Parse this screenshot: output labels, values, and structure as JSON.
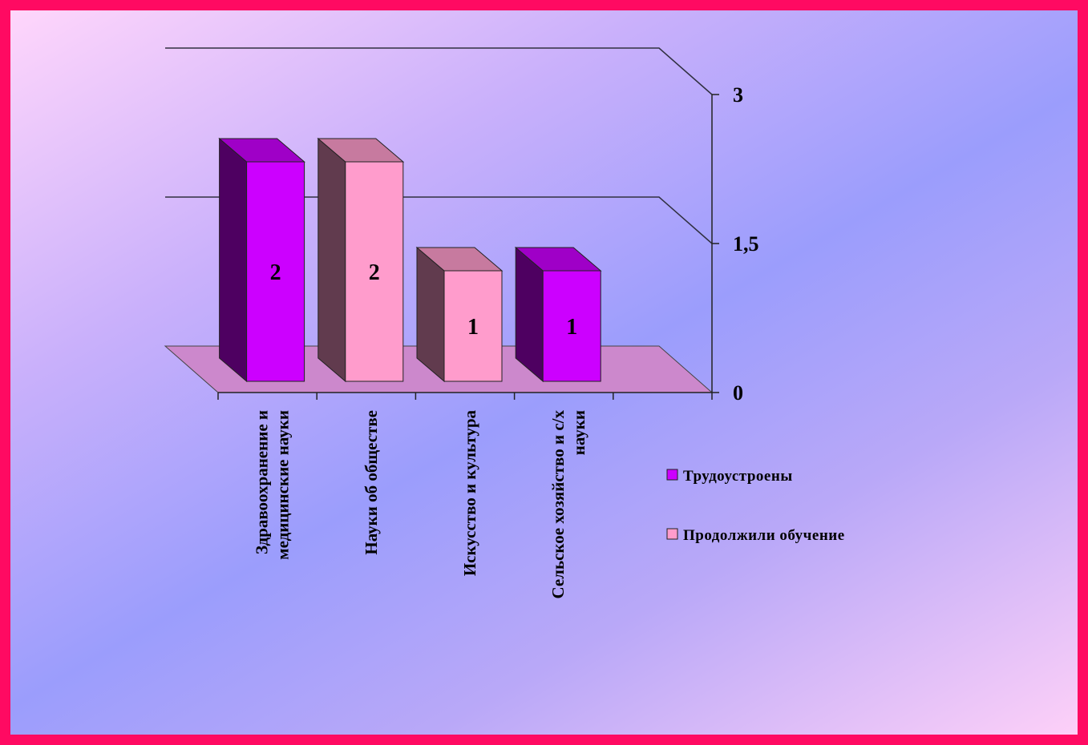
{
  "chart_data": {
    "type": "bar",
    "categories": [
      [
        "Здравоохранение и",
        "медицинские науки"
      ],
      [
        "Науки об обществе"
      ],
      [
        "Искусство и культура"
      ],
      [
        "Сельское хозяйство и с/х",
        "науки"
      ]
    ],
    "series": [
      {
        "name": "Трудоустроены",
        "color": "#cc00ff",
        "values": [
          2,
          null,
          null,
          1
        ]
      },
      {
        "name": "Продолжили обучение",
        "color": "#ff9ccc",
        "values": [
          null,
          2,
          1,
          null
        ]
      }
    ],
    "bar_values": [
      2,
      2,
      1,
      1
    ],
    "bar_colors": [
      "#cc00ff",
      "#ff9ccc",
      "#ff9ccc",
      "#cc00ff"
    ],
    "data_labels": [
      "2",
      "2",
      "1",
      "1"
    ],
    "y_ticks": [
      {
        "value": 0,
        "label": "0"
      },
      {
        "value": 1.5,
        "label": "1,5"
      },
      {
        "value": 3,
        "label": "3"
      }
    ],
    "ylim": [
      0,
      3
    ],
    "grid": true,
    "legend_position": "right",
    "floor_color": "#cc88cc",
    "colors": {
      "frame": "#ff0a62"
    }
  }
}
